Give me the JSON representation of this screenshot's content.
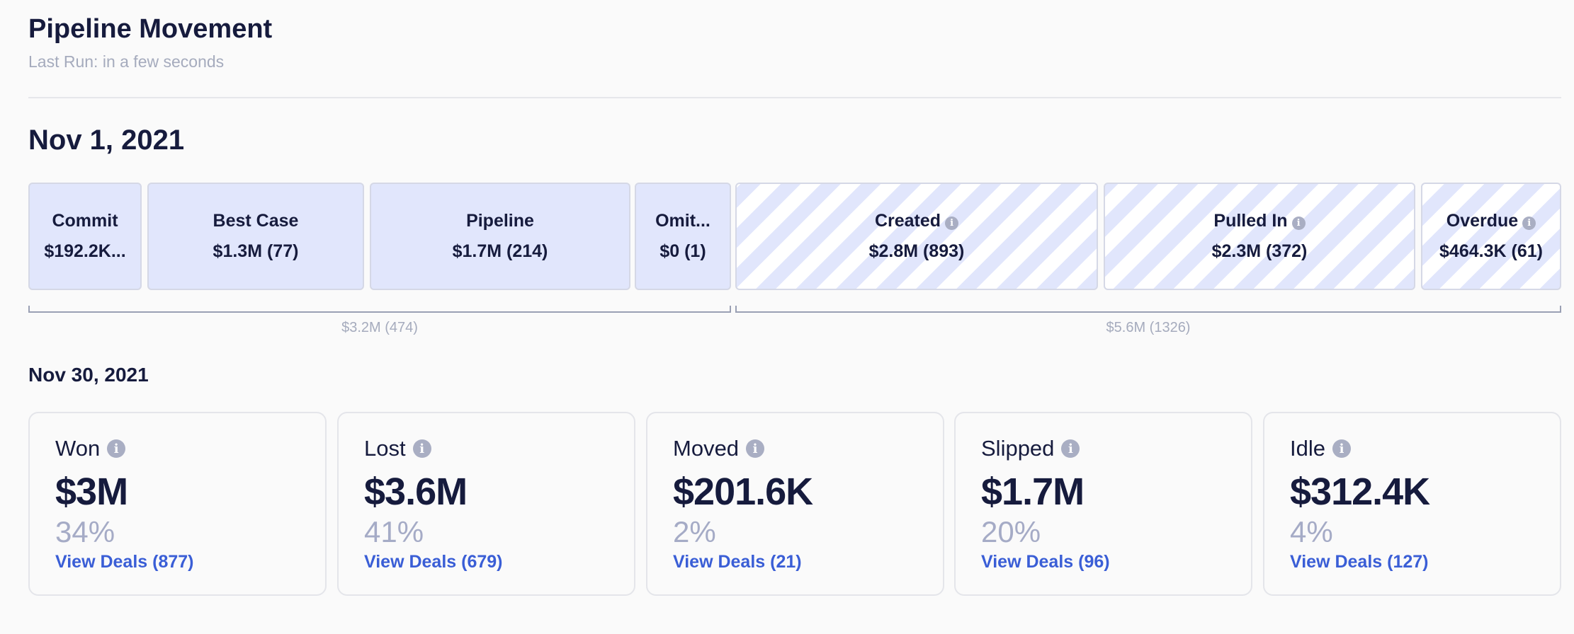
{
  "header": {
    "title": "Pipeline Movement",
    "last_run": "Last Run: in a few seconds"
  },
  "start": {
    "date": "Nov 1, 2021",
    "buckets": [
      {
        "label": "Commit",
        "value": "$192.2K..."
      },
      {
        "label": "Best Case",
        "value": "$1.3M (77)"
      },
      {
        "label": "Pipeline",
        "value": "$1.7M (214)"
      },
      {
        "label": "Omit...",
        "value": "$0 (1)"
      },
      {
        "label": "Created",
        "value": "$2.8M (893)"
      },
      {
        "label": "Pulled In",
        "value": "$2.3M (372)"
      },
      {
        "label": "Overdue",
        "value": "$464.3K (61)"
      }
    ],
    "totals": {
      "existing": "$3.2M (474)",
      "added": "$5.6M (1326)"
    }
  },
  "end": {
    "date": "Nov 30, 2021",
    "cards": [
      {
        "label": "Won",
        "amount": "$3M",
        "percent": "34%",
        "link": "View Deals (877)"
      },
      {
        "label": "Lost",
        "amount": "$3.6M",
        "percent": "41%",
        "link": "View Deals (679)"
      },
      {
        "label": "Moved",
        "amount": "$201.6K",
        "percent": "2%",
        "link": "View Deals (21)"
      },
      {
        "label": "Slipped",
        "amount": "$1.7M",
        "percent": "20%",
        "link": "View Deals (96)"
      },
      {
        "label": "Idle",
        "amount": "$312.4K",
        "percent": "4%",
        "link": "View Deals (127)"
      }
    ]
  },
  "icons": {
    "info": "info-icon"
  },
  "colors": {
    "accent": "#3a5ed6",
    "bucket_fill": "#e1e6fc",
    "muted": "#a5abbd"
  }
}
